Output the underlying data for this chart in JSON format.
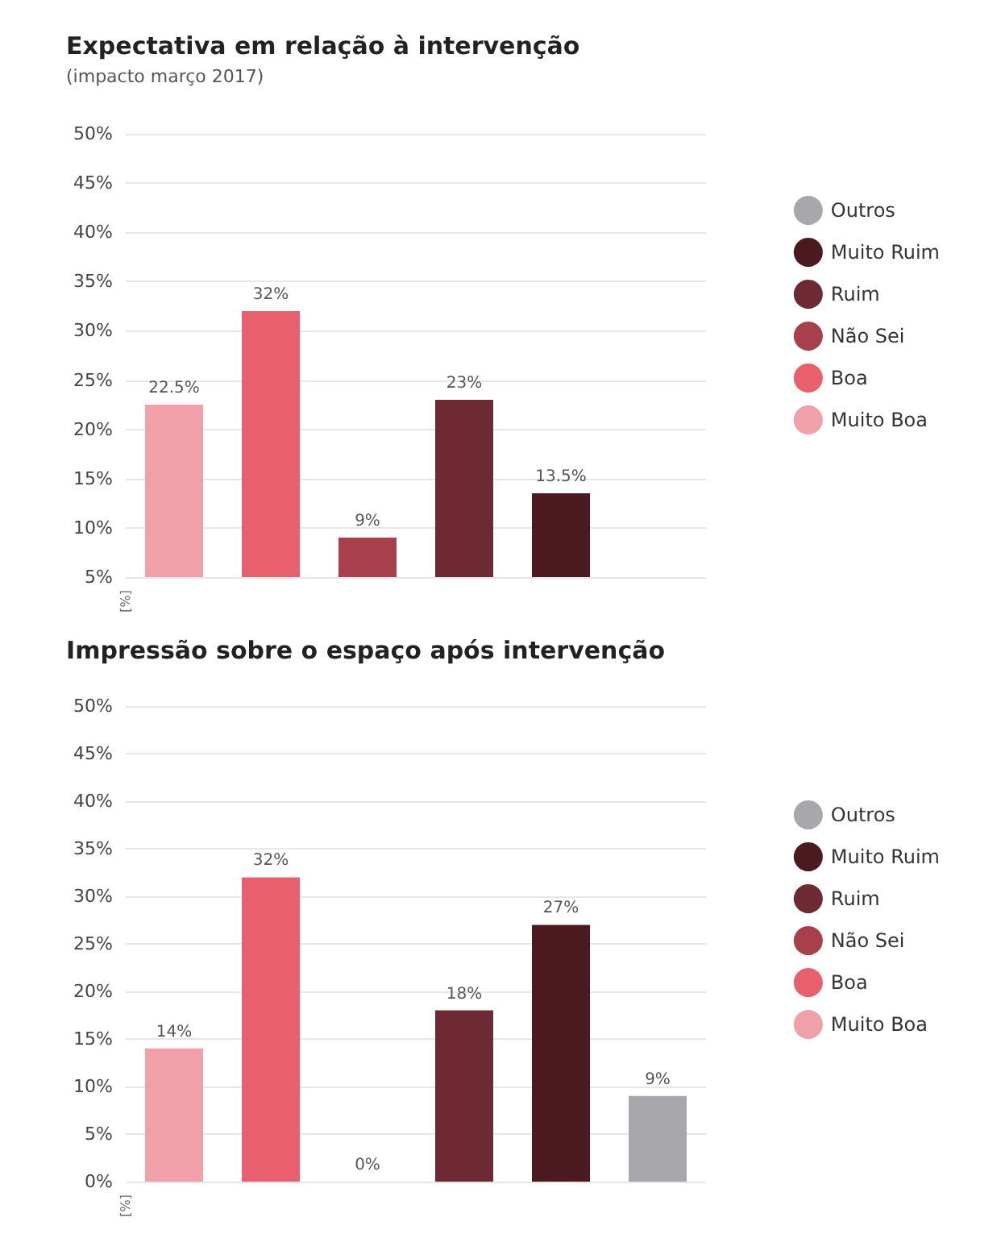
{
  "chart_data": [
    {
      "type": "bar",
      "title": "Expectativa em relação à intervenção",
      "subtitle": "(impacto março 2017)",
      "ylabel": "[%]",
      "categories": [
        null,
        null,
        null,
        null,
        null,
        null
      ],
      "series": [
        {
          "name": "Muito Boa",
          "color": "#f0a0a8",
          "values": [
            22.5,
            null,
            null,
            null,
            null,
            null
          ],
          "value_labels": [
            "22.5%",
            null,
            null,
            null,
            null,
            null
          ]
        },
        {
          "name": "Boa",
          "color": "#e8606e",
          "values": [
            null,
            32,
            null,
            null,
            null,
            null
          ],
          "value_labels": [
            null,
            "32%",
            null,
            null,
            null,
            null
          ]
        },
        {
          "name": "Não Sei",
          "color": "#a8404c",
          "values": [
            null,
            null,
            9,
            null,
            null,
            null
          ],
          "value_labels": [
            null,
            null,
            "9%",
            null,
            null,
            null
          ]
        },
        {
          "name": "Ruim",
          "color": "#6e2a32",
          "values": [
            null,
            null,
            null,
            23,
            null,
            null
          ],
          "value_labels": [
            null,
            null,
            null,
            "23%",
            null,
            null
          ]
        },
        {
          "name": "Muito Ruim",
          "color": "#4a1a20",
          "values": [
            null,
            null,
            null,
            null,
            13.5,
            null
          ],
          "value_labels": [
            null,
            null,
            null,
            null,
            "13.5%",
            null
          ]
        },
        {
          "name": "Outros",
          "color": "#a8a8ac",
          "values": [
            null,
            null,
            null,
            null,
            null,
            null
          ],
          "value_labels": [
            null,
            null,
            null,
            null,
            null,
            null
          ]
        }
      ],
      "ylim": [
        5,
        50
      ],
      "yticks": [
        {
          "value": 5,
          "label": "5%"
        },
        {
          "value": 10,
          "label": "10%"
        },
        {
          "value": 15,
          "label": "15%"
        },
        {
          "value": 20,
          "label": "20%"
        },
        {
          "value": 25,
          "label": "25%"
        },
        {
          "value": 30,
          "label": "30%"
        },
        {
          "value": 35,
          "label": "35%"
        },
        {
          "value": 40,
          "label": "40%"
        },
        {
          "value": 45,
          "label": "45%"
        },
        {
          "value": 50,
          "label": "50%"
        }
      ],
      "grid": "y",
      "legend": "right",
      "tick_labels": "y"
    },
    {
      "type": "bar",
      "title": "Impressão sobre o espaço após intervenção",
      "ylabel": "[%]",
      "categories": [
        null,
        null,
        null,
        null,
        null,
        null
      ],
      "series": [
        {
          "name": "Muito Boa",
          "color": "#f0a0a8",
          "values": [
            14,
            null,
            null,
            null,
            null,
            null
          ],
          "value_labels": [
            "14%",
            null,
            null,
            null,
            null,
            null
          ]
        },
        {
          "name": "Boa",
          "color": "#e8606e",
          "values": [
            null,
            32,
            null,
            null,
            null,
            null
          ],
          "value_labels": [
            null,
            "32%",
            null,
            null,
            null,
            null
          ]
        },
        {
          "name": "Não Sei",
          "color": "#a8404c",
          "values": [
            null,
            null,
            0,
            null,
            null,
            null
          ],
          "value_labels": [
            null,
            null,
            "0%",
            null,
            null,
            null
          ]
        },
        {
          "name": "Ruim",
          "color": "#6e2a32",
          "values": [
            null,
            null,
            null,
            18,
            null,
            null
          ],
          "value_labels": [
            null,
            null,
            null,
            "18%",
            null,
            null
          ]
        },
        {
          "name": "Muito Ruim",
          "color": "#4a1a20",
          "values": [
            null,
            null,
            null,
            null,
            27,
            null
          ],
          "value_labels": [
            null,
            null,
            null,
            null,
            "27%",
            null
          ]
        },
        {
          "name": "Outros",
          "color": "#a8a8ac",
          "values": [
            null,
            null,
            null,
            null,
            null,
            9
          ],
          "value_labels": [
            null,
            null,
            null,
            null,
            null,
            "9%"
          ]
        }
      ],
      "ylim": [
        0,
        50
      ],
      "yticks": [
        {
          "value": 0,
          "label": "0%"
        },
        {
          "value": 5,
          "label": "5%"
        },
        {
          "value": 10,
          "label": "10%"
        },
        {
          "value": 15,
          "label": "15%"
        },
        {
          "value": 20,
          "label": "20%"
        },
        {
          "value": 25,
          "label": "25%"
        },
        {
          "value": 30,
          "label": "30%"
        },
        {
          "value": 35,
          "label": "35%"
        },
        {
          "value": 40,
          "label": "40%"
        },
        {
          "value": 45,
          "label": "45%"
        },
        {
          "value": 50,
          "label": "50%"
        }
      ],
      "grid": "y",
      "legend": "right",
      "tick_labels": "y"
    }
  ]
}
